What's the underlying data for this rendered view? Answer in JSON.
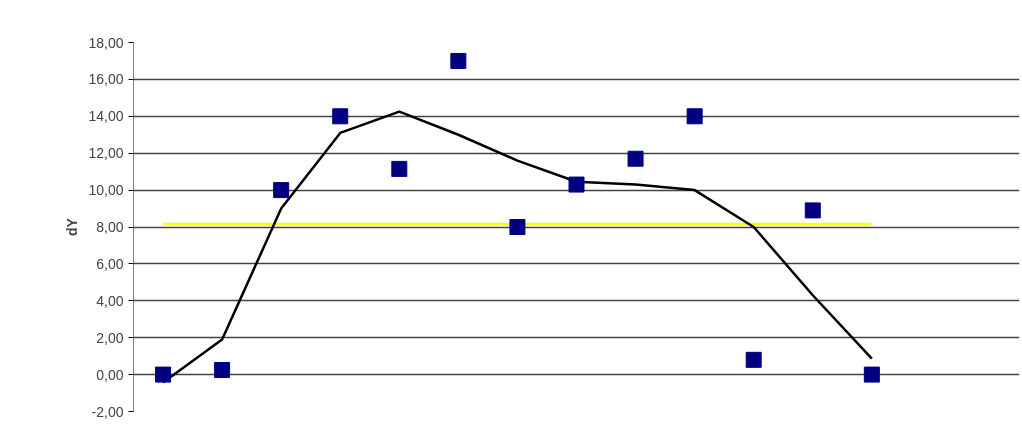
{
  "chart_data": {
    "type": "scatter",
    "ylabel": "dY",
    "categories": [
      null,
      null,
      null,
      null,
      null,
      null,
      null,
      null,
      null,
      null,
      null,
      null,
      null
    ],
    "yticks": [
      {
        "value": -2,
        "label": "-2,00"
      },
      {
        "value": 0,
        "label": "0,00"
      },
      {
        "value": 2,
        "label": "2,00"
      },
      {
        "value": 4,
        "label": "4,00"
      },
      {
        "value": 6,
        "label": "6,00"
      },
      {
        "value": 8,
        "label": "8,00"
      },
      {
        "value": 10,
        "label": "10,00"
      },
      {
        "value": 12,
        "label": "12,00"
      },
      {
        "value": 14,
        "label": "14,00"
      },
      {
        "value": 16,
        "label": "16,00"
      },
      {
        "value": 18,
        "label": "18,00"
      }
    ],
    "ylim": [
      -2,
      18
    ],
    "grid": "y",
    "tick_labels": "y",
    "series": [
      {
        "type": "line",
        "color": "#ffff00",
        "values": [
          8.16,
          8.16,
          8.16,
          8.16,
          8.16,
          8.16,
          8.16,
          8.16,
          8.16,
          8.16,
          8.16,
          8.16,
          8.16
        ]
      },
      {
        "type": "line",
        "color": "#000000",
        "values": [
          -0.43,
          1.9,
          9.0,
          13.1,
          14.25,
          13.0,
          11.6,
          10.45,
          10.3,
          10.0,
          8.0,
          4.3,
          0.87
        ]
      },
      {
        "color": "#000080",
        "marker": "square",
        "values": [
          0,
          0.25,
          10.0,
          14.0,
          11.15,
          17.0,
          8.0,
          10.3,
          11.7,
          14.0,
          0.8,
          8.9,
          0
        ]
      }
    ]
  }
}
